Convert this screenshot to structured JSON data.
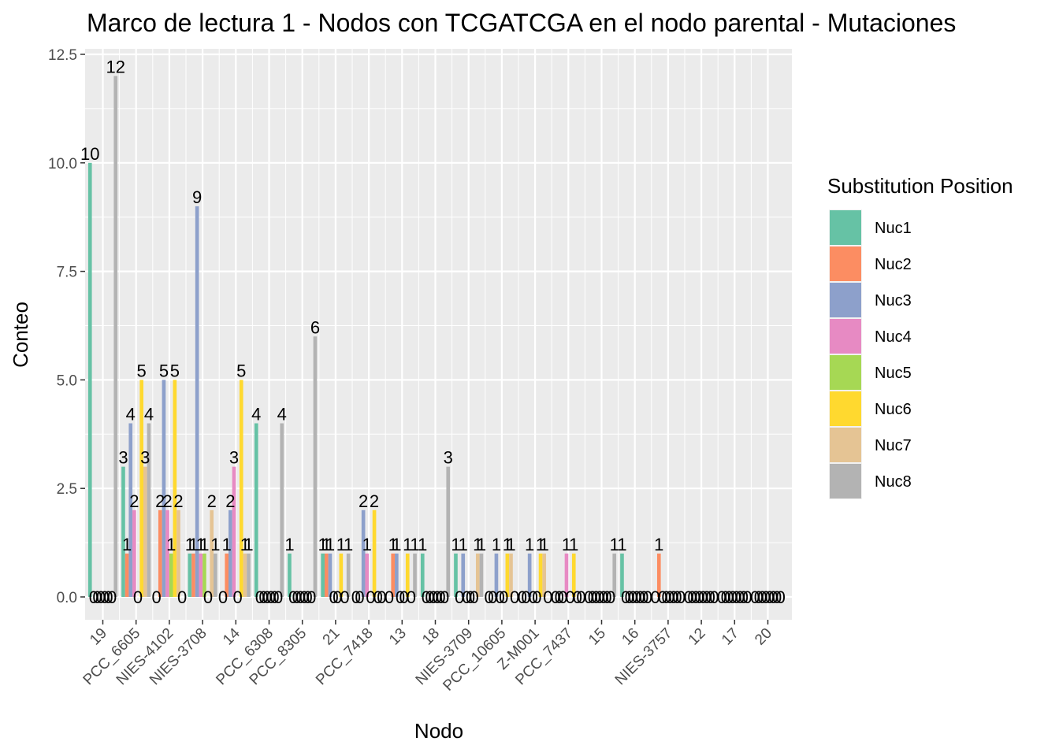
{
  "chart_data": {
    "type": "bar",
    "title": "Marco de lectura 1 - Nodos con TCGATCGA en el nodo parental - Mutaciones",
    "xlabel": "Nodo",
    "ylabel": "Conteo",
    "ylim": [
      -0.55,
      12.5
    ],
    "yticks": [
      0.0,
      2.5,
      5.0,
      7.5,
      10.0,
      12.5
    ],
    "ytick_labels": [
      "0.0",
      "2.5",
      "5.0",
      "7.5",
      "10.0",
      "12.5"
    ],
    "grid": true,
    "legend": {
      "title": "Substitution Position",
      "placement": "right"
    },
    "categories": [
      "19",
      "PCC_6605",
      "NIES-4102",
      "NIES-3708",
      "14",
      "PCC_6308",
      "PCC_8305",
      "21",
      "PCC_7418",
      "13",
      "18",
      "NIES-3709",
      "PCC_10605",
      "Z-M001",
      "PCC_7437",
      "15",
      "16",
      "NIES-3757",
      "12",
      "17",
      "20"
    ],
    "series": [
      {
        "name": "Nuc1",
        "color": "#66c2a5",
        "values": [
          10,
          3,
          0,
          1,
          0,
          4,
          1,
          1,
          0,
          0,
          1,
          1,
          0,
          0,
          0,
          0,
          1,
          0,
          0,
          0,
          0
        ]
      },
      {
        "name": "Nuc2",
        "color": "#fc8d62",
        "values": [
          0,
          1,
          2,
          1,
          1,
          0,
          0,
          1,
          0,
          1,
          0,
          0,
          0,
          0,
          0,
          0,
          0,
          1,
          0,
          0,
          0
        ]
      },
      {
        "name": "Nuc3",
        "color": "#8da0cb",
        "values": [
          0,
          4,
          5,
          9,
          2,
          0,
          0,
          1,
          2,
          1,
          0,
          1,
          1,
          1,
          0,
          0,
          0,
          0,
          0,
          0,
          0
        ]
      },
      {
        "name": "Nuc4",
        "color": "#e78ac3",
        "values": [
          0,
          2,
          2,
          1,
          3,
          0,
          0,
          0,
          1,
          0,
          0,
          0,
          0,
          0,
          1,
          0,
          0,
          0,
          0,
          0,
          0
        ]
      },
      {
        "name": "Nuc5",
        "color": "#a6d854",
        "values": [
          0,
          0,
          1,
          1,
          0,
          0,
          0,
          0,
          0,
          0,
          0,
          0,
          0,
          0,
          0,
          0,
          0,
          0,
          0,
          0,
          0
        ]
      },
      {
        "name": "Nuc6",
        "color": "#ffd92f",
        "values": [
          0,
          5,
          5,
          0,
          5,
          0,
          0,
          1,
          2,
          1,
          0,
          0,
          1,
          1,
          1,
          0,
          0,
          0,
          0,
          0,
          0
        ]
      },
      {
        "name": "Nuc7",
        "color": "#e5c494",
        "values": [
          0,
          3,
          2,
          2,
          1,
          0,
          0,
          0,
          0,
          0,
          0,
          1,
          1,
          1,
          0,
          0,
          0,
          0,
          0,
          0,
          0
        ]
      },
      {
        "name": "Nuc8",
        "color": "#b3b3b3",
        "values": [
          12,
          4,
          0,
          1,
          1,
          4,
          6,
          1,
          0,
          1,
          3,
          1,
          0,
          0,
          0,
          1,
          0,
          0,
          0,
          0,
          0
        ]
      }
    ]
  }
}
